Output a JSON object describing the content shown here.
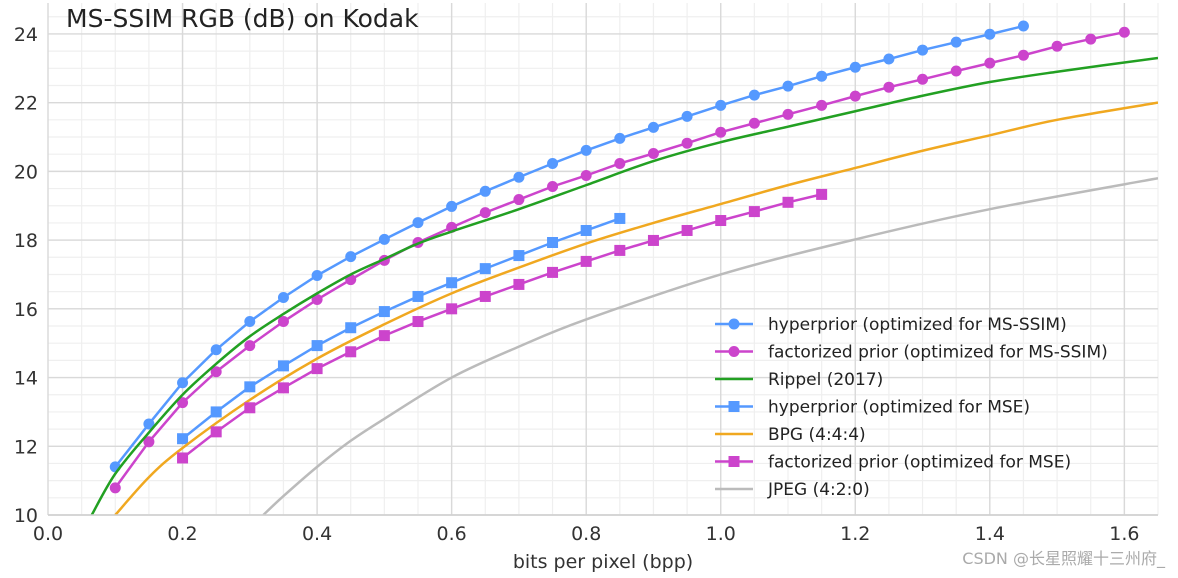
{
  "chart_data": {
    "type": "line",
    "title": "MS-SSIM RGB (dB) on Kodak",
    "xlabel": "bits per pixel (bpp)",
    "ylabel": "",
    "xlim": [
      0,
      1.65
    ],
    "ylim": [
      10,
      24.9
    ],
    "xticks": [
      "0.0",
      "0.2",
      "0.4",
      "0.6",
      "0.8",
      "1.0",
      "1.2",
      "1.4",
      "1.6"
    ],
    "yticks": [
      "10",
      "12",
      "14",
      "16",
      "18",
      "20",
      "22",
      "24"
    ],
    "grid": true,
    "legend_placement": "lower-right",
    "series": [
      {
        "name": "hyperprior (optimized for MS-SSIM)",
        "color": "#5599ff",
        "marker": "circle",
        "x": [
          0.1,
          0.15,
          0.2,
          0.25,
          0.3,
          0.35,
          0.4,
          0.45,
          0.5,
          0.55,
          0.6,
          0.65,
          0.7,
          0.75,
          0.8,
          0.85,
          0.9,
          0.95,
          1.0,
          1.05,
          1.1,
          1.15,
          1.2,
          1.25,
          1.3,
          1.35,
          1.4,
          1.45
        ],
        "y": [
          11.4,
          12.65,
          13.85,
          14.81,
          15.63,
          16.33,
          16.97,
          17.52,
          18.02,
          18.51,
          18.98,
          19.42,
          19.83,
          20.23,
          20.61,
          20.96,
          21.28,
          21.6,
          21.92,
          22.22,
          22.48,
          22.77,
          23.03,
          23.27,
          23.53,
          23.76,
          23.99,
          24.23
        ]
      },
      {
        "name": "factorized prior (optimized for MS-SSIM)",
        "color": "#cc44cc",
        "marker": "circle",
        "x": [
          0.1,
          0.15,
          0.2,
          0.25,
          0.3,
          0.35,
          0.4,
          0.45,
          0.5,
          0.55,
          0.6,
          0.65,
          0.7,
          0.75,
          0.8,
          0.85,
          0.9,
          0.95,
          1.0,
          1.05,
          1.1,
          1.15,
          1.2,
          1.25,
          1.3,
          1.35,
          1.4,
          1.45,
          1.5,
          1.55,
          1.6
        ],
        "y": [
          10.79,
          12.13,
          13.27,
          14.17,
          14.93,
          15.63,
          16.27,
          16.85,
          17.41,
          17.93,
          18.37,
          18.8,
          19.18,
          19.56,
          19.88,
          20.23,
          20.52,
          20.82,
          21.14,
          21.4,
          21.66,
          21.92,
          22.19,
          22.45,
          22.68,
          22.92,
          23.15,
          23.38,
          23.64,
          23.85,
          24.05
        ]
      },
      {
        "name": "Rippel (2017)",
        "color": "#22a022",
        "marker": "none",
        "x": [
          0.065,
          0.1,
          0.15,
          0.2,
          0.25,
          0.3,
          0.35,
          0.4,
          0.45,
          0.5,
          0.55,
          0.6,
          0.7,
          0.8,
          0.9,
          1.0,
          1.1,
          1.2,
          1.3,
          1.4,
          1.5,
          1.65
        ],
        "y": [
          10.0,
          11.2,
          12.4,
          13.5,
          14.4,
          15.2,
          15.85,
          16.45,
          17.0,
          17.45,
          17.9,
          18.25,
          18.9,
          19.6,
          20.3,
          20.85,
          21.3,
          21.75,
          22.2,
          22.6,
          22.9,
          23.3
        ]
      },
      {
        "name": "hyperprior (optimized for MSE)",
        "color": "#5599ff",
        "marker": "square",
        "x": [
          0.2,
          0.25,
          0.3,
          0.35,
          0.4,
          0.45,
          0.5,
          0.55,
          0.6,
          0.65,
          0.7,
          0.75,
          0.8,
          0.85
        ],
        "y": [
          12.22,
          13.0,
          13.73,
          14.34,
          14.93,
          15.45,
          15.92,
          16.36,
          16.76,
          17.17,
          17.55,
          17.93,
          18.28,
          18.63
        ]
      },
      {
        "name": "BPG (4:4:4)",
        "color": "#f0a820",
        "marker": "none",
        "x": [
          0.1,
          0.15,
          0.2,
          0.3,
          0.4,
          0.5,
          0.6,
          0.7,
          0.8,
          0.9,
          1.0,
          1.1,
          1.2,
          1.3,
          1.4,
          1.5,
          1.65
        ],
        "y": [
          10.0,
          11.1,
          11.95,
          13.35,
          14.55,
          15.55,
          16.45,
          17.2,
          17.9,
          18.5,
          19.05,
          19.6,
          20.1,
          20.6,
          21.05,
          21.5,
          22.0
        ]
      },
      {
        "name": "factorized prior (optimized for MSE)",
        "color": "#cc44cc",
        "marker": "square",
        "x": [
          0.2,
          0.25,
          0.3,
          0.35,
          0.4,
          0.45,
          0.5,
          0.55,
          0.6,
          0.65,
          0.7,
          0.75,
          0.8,
          0.85,
          0.9,
          0.95,
          1.0,
          1.05,
          1.1,
          1.15
        ],
        "y": [
          11.66,
          12.42,
          13.12,
          13.7,
          14.26,
          14.75,
          15.22,
          15.63,
          16.0,
          16.36,
          16.71,
          17.06,
          17.38,
          17.7,
          17.99,
          18.28,
          18.57,
          18.83,
          19.1,
          19.33
        ]
      },
      {
        "name": "JPEG (4:2:0)",
        "color": "#bbbbbb",
        "marker": "none",
        "x": [
          0.32,
          0.35,
          0.4,
          0.45,
          0.5,
          0.6,
          0.7,
          0.8,
          1.0,
          1.2,
          1.4,
          1.65
        ],
        "y": [
          10.0,
          10.55,
          11.4,
          12.16,
          12.8,
          14.0,
          14.9,
          15.69,
          17.0,
          18.02,
          18.9,
          19.8
        ]
      }
    ]
  },
  "watermark": "CSDN @长星照耀十三州府_"
}
